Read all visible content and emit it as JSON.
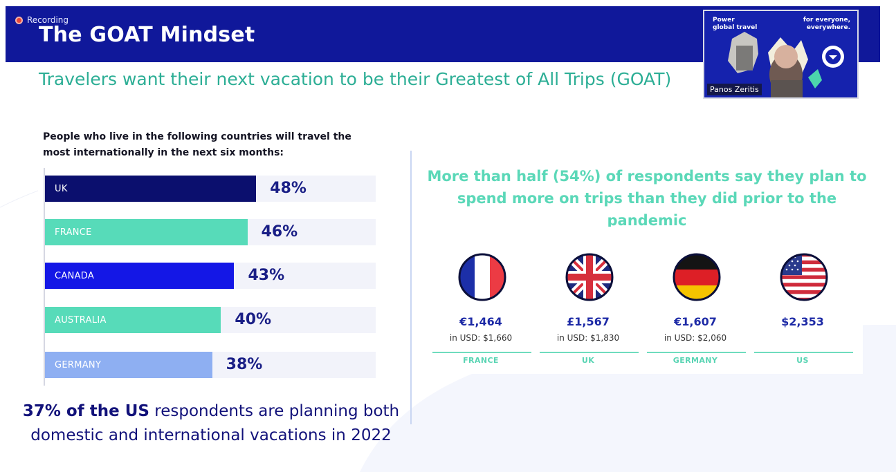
{
  "header": {
    "recording_label": "Recording",
    "title": "The GOAT Mindset",
    "color": "#10189a"
  },
  "subtitle": "Travelers want their next vacation to be their Greatest of All Trips (GOAT)",
  "video": {
    "tagline_left": [
      "Power",
      "global travel"
    ],
    "tagline_right": [
      "for everyone,",
      "everywhere."
    ],
    "participant_name": "Panos Zeritis"
  },
  "chart_data": {
    "type": "bar",
    "title": "People who live in the following countries will travel the most internationally in the next six months:",
    "categories": [
      "UK",
      "FRANCE",
      "CANADA",
      "AUSTRALIA",
      "GERMANY"
    ],
    "values": [
      48,
      46,
      43,
      40,
      38
    ],
    "value_labels": [
      "48%",
      "46%",
      "43%",
      "40%",
      "38%"
    ],
    "colors": [
      "#0b0f6e",
      "#57dbb9",
      "#1417e6",
      "#57dbb9",
      "#8eaff2"
    ],
    "orientation": "horizontal"
  },
  "us_note": {
    "bold": "37% of the US",
    "rest_line1": " respondents are planning both",
    "line2": "domestic and international vacations in 2022"
  },
  "right": {
    "heading_line1": "More than half (54%) of respondents say they plan to",
    "heading_line2": "spend more on trips than they did prior to the pandemic",
    "cards": [
      {
        "country": "FRANCE",
        "price": "€1,464",
        "usd": "in USD: $1,660",
        "flag": "france-flag"
      },
      {
        "country": "UK",
        "price": "£1,567",
        "usd": "in USD: $1,830",
        "flag": "uk-flag"
      },
      {
        "country": "GERMANY",
        "price": "€1,607",
        "usd": "in USD: $2,060",
        "flag": "germany-flag"
      },
      {
        "country": "US",
        "price": "$2,353",
        "usd": "",
        "flag": "us-flag"
      }
    ]
  }
}
